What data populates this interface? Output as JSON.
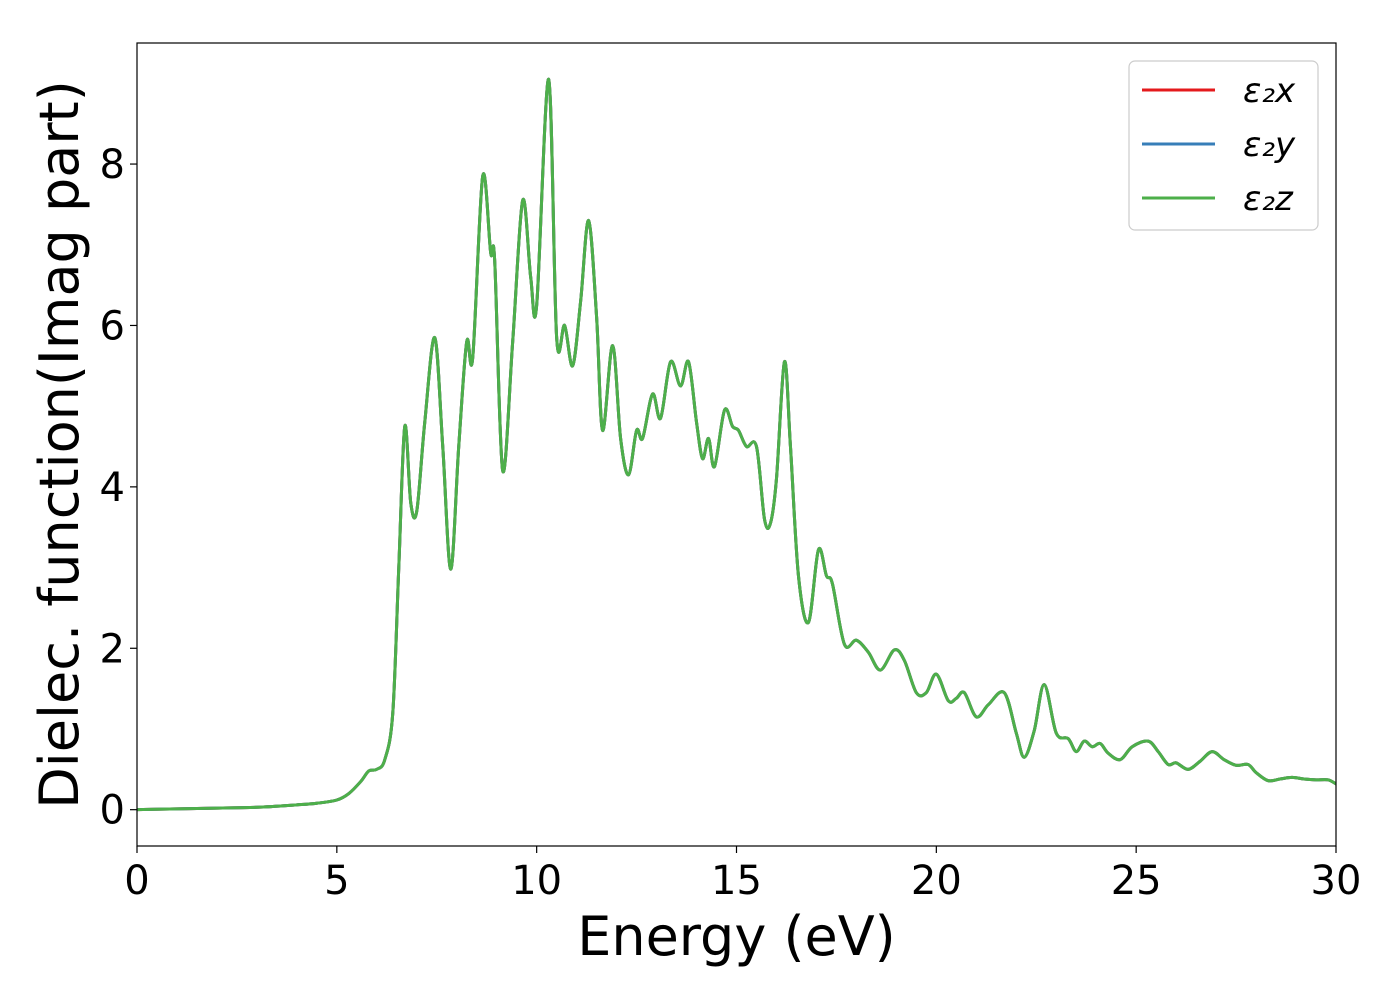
{
  "chart_data": {
    "type": "line",
    "xlabel": "Energy (eV)",
    "ylabel": "Dielec. function(Imag part)",
    "xlim": [
      0,
      30
    ],
    "ylim": [
      -0.45,
      9.5
    ],
    "xticks": [
      0,
      5,
      10,
      15,
      20,
      25,
      30
    ],
    "yticks": [
      0,
      2,
      4,
      6,
      8
    ],
    "xtick_labels": [
      "0",
      "5",
      "10",
      "15",
      "20",
      "25",
      "30"
    ],
    "ytick_labels": [
      "0",
      "2",
      "4",
      "6",
      "8"
    ],
    "grid": false,
    "legend_position": "top-right",
    "legend": [
      {
        "label": "ε₂x",
        "color": "#e41a1c"
      },
      {
        "label": "ε₂y",
        "color": "#377eb8"
      },
      {
        "label": "ε₂z",
        "color": "#4daf4a"
      }
    ],
    "x": [
      0,
      1,
      2,
      3,
      4,
      4.5,
      5,
      5.3,
      5.6,
      5.8,
      6.0,
      6.2,
      6.4,
      6.55,
      6.7,
      6.85,
      7.0,
      7.2,
      7.45,
      7.65,
      7.85,
      8.05,
      8.25,
      8.4,
      8.65,
      8.85,
      8.95,
      9.15,
      9.4,
      9.65,
      9.85,
      10.0,
      10.3,
      10.5,
      10.7,
      10.9,
      11.1,
      11.3,
      11.5,
      11.65,
      11.9,
      12.1,
      12.3,
      12.5,
      12.65,
      12.9,
      13.1,
      13.35,
      13.6,
      13.8,
      14.0,
      14.15,
      14.3,
      14.45,
      14.7,
      14.9,
      15.05,
      15.25,
      15.5,
      15.7,
      15.85,
      16.0,
      16.2,
      16.35,
      16.55,
      16.8,
      17.05,
      17.25,
      17.4,
      17.7,
      18.0,
      18.3,
      18.6,
      18.95,
      19.2,
      19.5,
      19.75,
      20.0,
      20.3,
      20.5,
      20.7,
      21.0,
      21.3,
      21.7,
      22.0,
      22.2,
      22.45,
      22.7,
      23.0,
      23.3,
      23.5,
      23.7,
      23.9,
      24.1,
      24.3,
      24.6,
      24.9,
      25.3,
      25.55,
      25.8,
      26.0,
      26.3,
      26.6,
      26.9,
      27.2,
      27.5,
      27.8,
      28.0,
      28.3,
      28.6,
      28.9,
      29.2,
      29.5,
      29.8,
      30.0
    ],
    "series": [
      {
        "name": "ε₂x",
        "color": "#e41a1c",
        "values": [
          0.0,
          0.01,
          0.02,
          0.03,
          0.06,
          0.08,
          0.12,
          0.2,
          0.35,
          0.48,
          0.5,
          0.62,
          1.2,
          3.0,
          4.75,
          3.8,
          3.7,
          4.8,
          5.85,
          4.5,
          2.98,
          4.5,
          5.8,
          5.6,
          7.85,
          6.9,
          6.8,
          4.2,
          5.8,
          7.55,
          6.6,
          6.25,
          9.05,
          5.85,
          6.0,
          5.5,
          6.3,
          7.3,
          6.1,
          4.7,
          5.75,
          4.6,
          4.15,
          4.7,
          4.6,
          5.15,
          4.85,
          5.55,
          5.25,
          5.55,
          4.8,
          4.35,
          4.6,
          4.25,
          4.95,
          4.75,
          4.7,
          4.5,
          4.5,
          3.6,
          3.55,
          4.1,
          5.55,
          4.5,
          2.9,
          2.32,
          3.22,
          2.9,
          2.8,
          2.05,
          2.1,
          1.95,
          1.73,
          1.98,
          1.85,
          1.45,
          1.45,
          1.68,
          1.35,
          1.38,
          1.45,
          1.15,
          1.3,
          1.45,
          0.95,
          0.65,
          0.98,
          1.55,
          0.95,
          0.88,
          0.72,
          0.85,
          0.78,
          0.82,
          0.7,
          0.62,
          0.78,
          0.85,
          0.72,
          0.56,
          0.58,
          0.5,
          0.6,
          0.72,
          0.62,
          0.55,
          0.56,
          0.46,
          0.36,
          0.38,
          0.4,
          0.38,
          0.37,
          0.37,
          0.32
        ]
      },
      {
        "name": "ε₂y",
        "color": "#377eb8",
        "values": [
          0.0,
          0.01,
          0.02,
          0.03,
          0.06,
          0.08,
          0.12,
          0.2,
          0.35,
          0.48,
          0.5,
          0.62,
          1.2,
          3.0,
          4.75,
          3.8,
          3.7,
          4.8,
          5.85,
          4.5,
          2.98,
          4.5,
          5.8,
          5.6,
          7.85,
          6.9,
          6.8,
          4.2,
          5.8,
          7.55,
          6.6,
          6.25,
          9.05,
          5.85,
          6.0,
          5.5,
          6.3,
          7.3,
          6.1,
          4.7,
          5.75,
          4.6,
          4.15,
          4.7,
          4.6,
          5.15,
          4.85,
          5.55,
          5.25,
          5.55,
          4.8,
          4.35,
          4.6,
          4.25,
          4.95,
          4.75,
          4.7,
          4.5,
          4.5,
          3.6,
          3.55,
          4.1,
          5.55,
          4.5,
          2.9,
          2.32,
          3.22,
          2.9,
          2.8,
          2.05,
          2.1,
          1.95,
          1.73,
          1.98,
          1.85,
          1.45,
          1.45,
          1.68,
          1.35,
          1.38,
          1.45,
          1.15,
          1.3,
          1.45,
          0.95,
          0.65,
          0.98,
          1.55,
          0.95,
          0.88,
          0.72,
          0.85,
          0.78,
          0.82,
          0.7,
          0.62,
          0.78,
          0.85,
          0.72,
          0.56,
          0.58,
          0.5,
          0.6,
          0.72,
          0.62,
          0.55,
          0.56,
          0.46,
          0.36,
          0.38,
          0.4,
          0.38,
          0.37,
          0.37,
          0.32
        ]
      },
      {
        "name": "ε₂z",
        "color": "#4daf4a",
        "values": [
          0.0,
          0.01,
          0.02,
          0.03,
          0.06,
          0.08,
          0.12,
          0.2,
          0.35,
          0.48,
          0.5,
          0.62,
          1.2,
          3.0,
          4.75,
          3.8,
          3.7,
          4.8,
          5.85,
          4.5,
          2.98,
          4.5,
          5.8,
          5.6,
          7.85,
          6.9,
          6.8,
          4.2,
          5.8,
          7.55,
          6.6,
          6.25,
          9.05,
          5.85,
          6.0,
          5.5,
          6.3,
          7.3,
          6.1,
          4.7,
          5.75,
          4.6,
          4.15,
          4.7,
          4.6,
          5.15,
          4.85,
          5.55,
          5.25,
          5.55,
          4.8,
          4.35,
          4.6,
          4.25,
          4.95,
          4.75,
          4.7,
          4.5,
          4.5,
          3.6,
          3.55,
          4.1,
          5.55,
          4.5,
          2.9,
          2.32,
          3.22,
          2.9,
          2.8,
          2.05,
          2.1,
          1.95,
          1.73,
          1.98,
          1.85,
          1.45,
          1.45,
          1.68,
          1.35,
          1.38,
          1.45,
          1.15,
          1.3,
          1.45,
          0.95,
          0.65,
          0.98,
          1.55,
          0.95,
          0.88,
          0.72,
          0.85,
          0.78,
          0.82,
          0.7,
          0.62,
          0.78,
          0.85,
          0.72,
          0.56,
          0.58,
          0.5,
          0.6,
          0.72,
          0.62,
          0.55,
          0.56,
          0.46,
          0.36,
          0.38,
          0.4,
          0.38,
          0.37,
          0.37,
          0.32
        ]
      }
    ]
  }
}
